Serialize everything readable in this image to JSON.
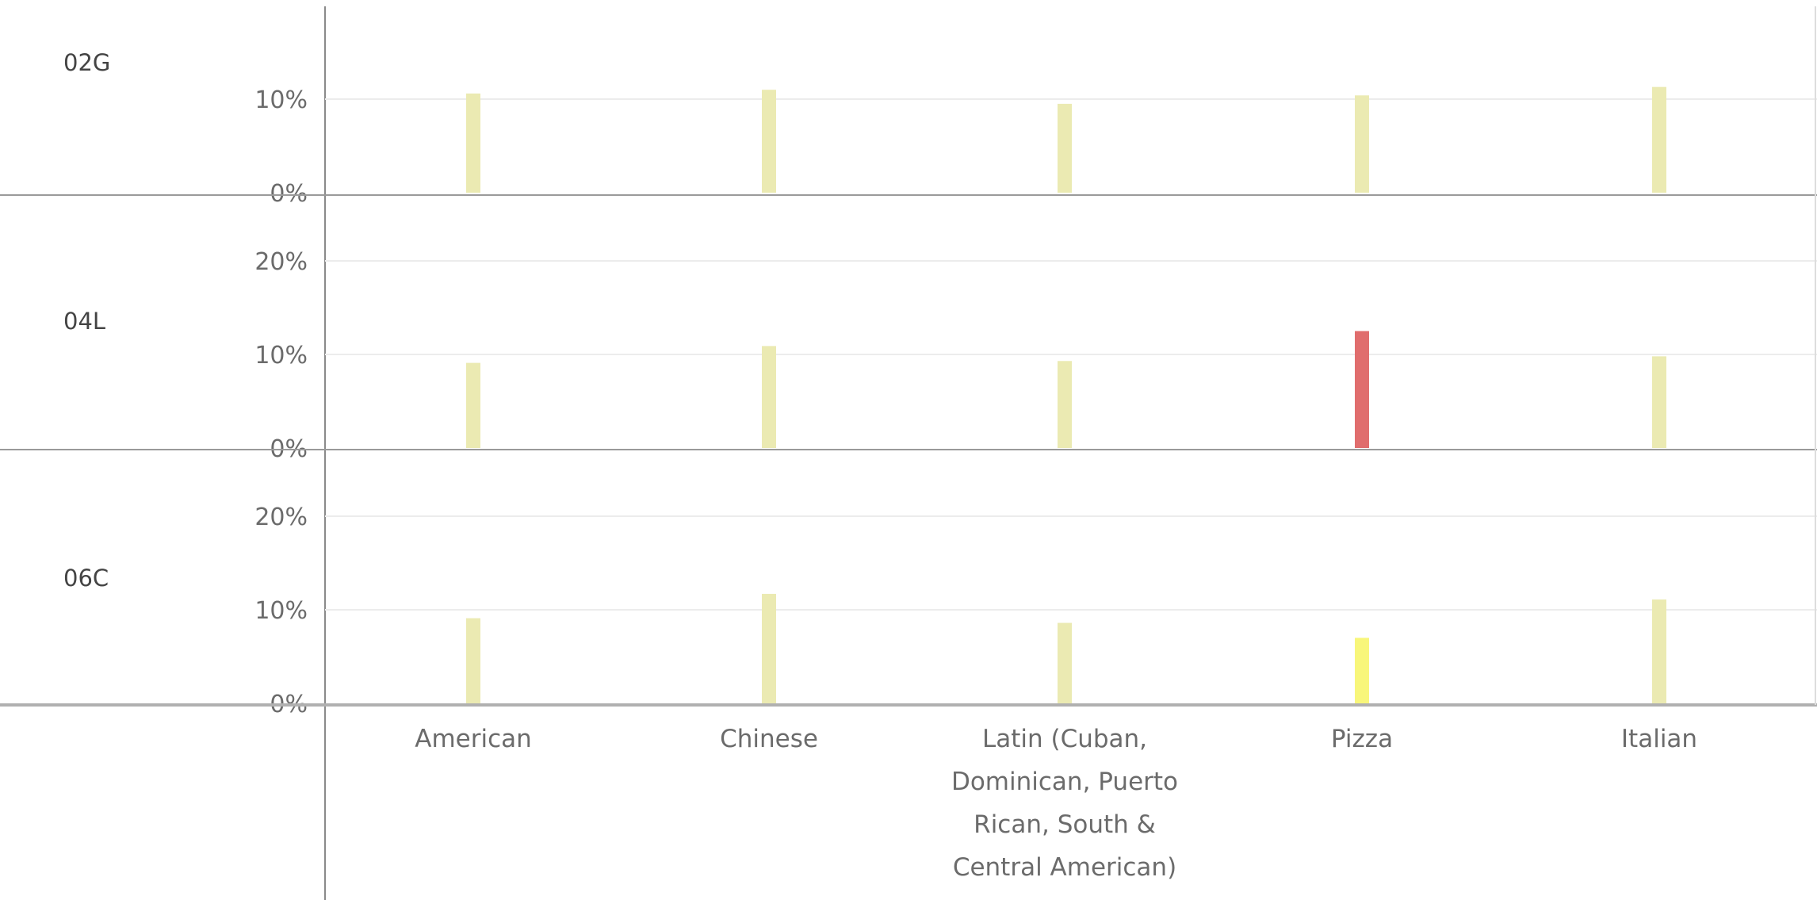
{
  "chart_data": {
    "type": "bar",
    "categories": [
      "American",
      "Chinese",
      "Latin (Cuban, Dominican, Puerto Rican, South & Central American)",
      "Pizza",
      "Italian"
    ],
    "category_lines": [
      [
        "American"
      ],
      [
        "Chinese"
      ],
      [
        "Latin (Cuban,",
        "Dominican, Puerto",
        "Rican, South &",
        "Central American)"
      ],
      [
        "Pizza"
      ],
      [
        "Italian"
      ]
    ],
    "panels": [
      {
        "name": "02G",
        "ticks": [
          "0%",
          "10%"
        ],
        "ylim": [
          0,
          16.5
        ],
        "values": [
          10.6,
          11.0,
          9.5,
          10.4,
          11.3
        ],
        "colors": [
          "#ebeab2",
          "#ebeab2",
          "#ebeab2",
          "#ebeab2",
          "#ebeab2"
        ]
      },
      {
        "name": "04L",
        "ticks": [
          "0%",
          "10%",
          "20%"
        ],
        "ylim": [
          0,
          22
        ],
        "values": [
          9.1,
          10.9,
          9.3,
          12.5,
          9.8
        ],
        "colors": [
          "#ebeab2",
          "#ebeab2",
          "#ebeab2",
          "#e06d6d",
          "#ebeab2"
        ]
      },
      {
        "name": "06C",
        "ticks": [
          "0%",
          "10%",
          "20%"
        ],
        "ylim": [
          0,
          22
        ],
        "values": [
          9.1,
          11.7,
          8.6,
          7.0,
          11.1
        ],
        "colors": [
          "#ebeab2",
          "#ebeab2",
          "#ebeab2",
          "#f8f67a",
          "#ebeab2"
        ]
      }
    ],
    "xlabel": "",
    "ylabel": "",
    "grid": true,
    "legend": "none"
  }
}
